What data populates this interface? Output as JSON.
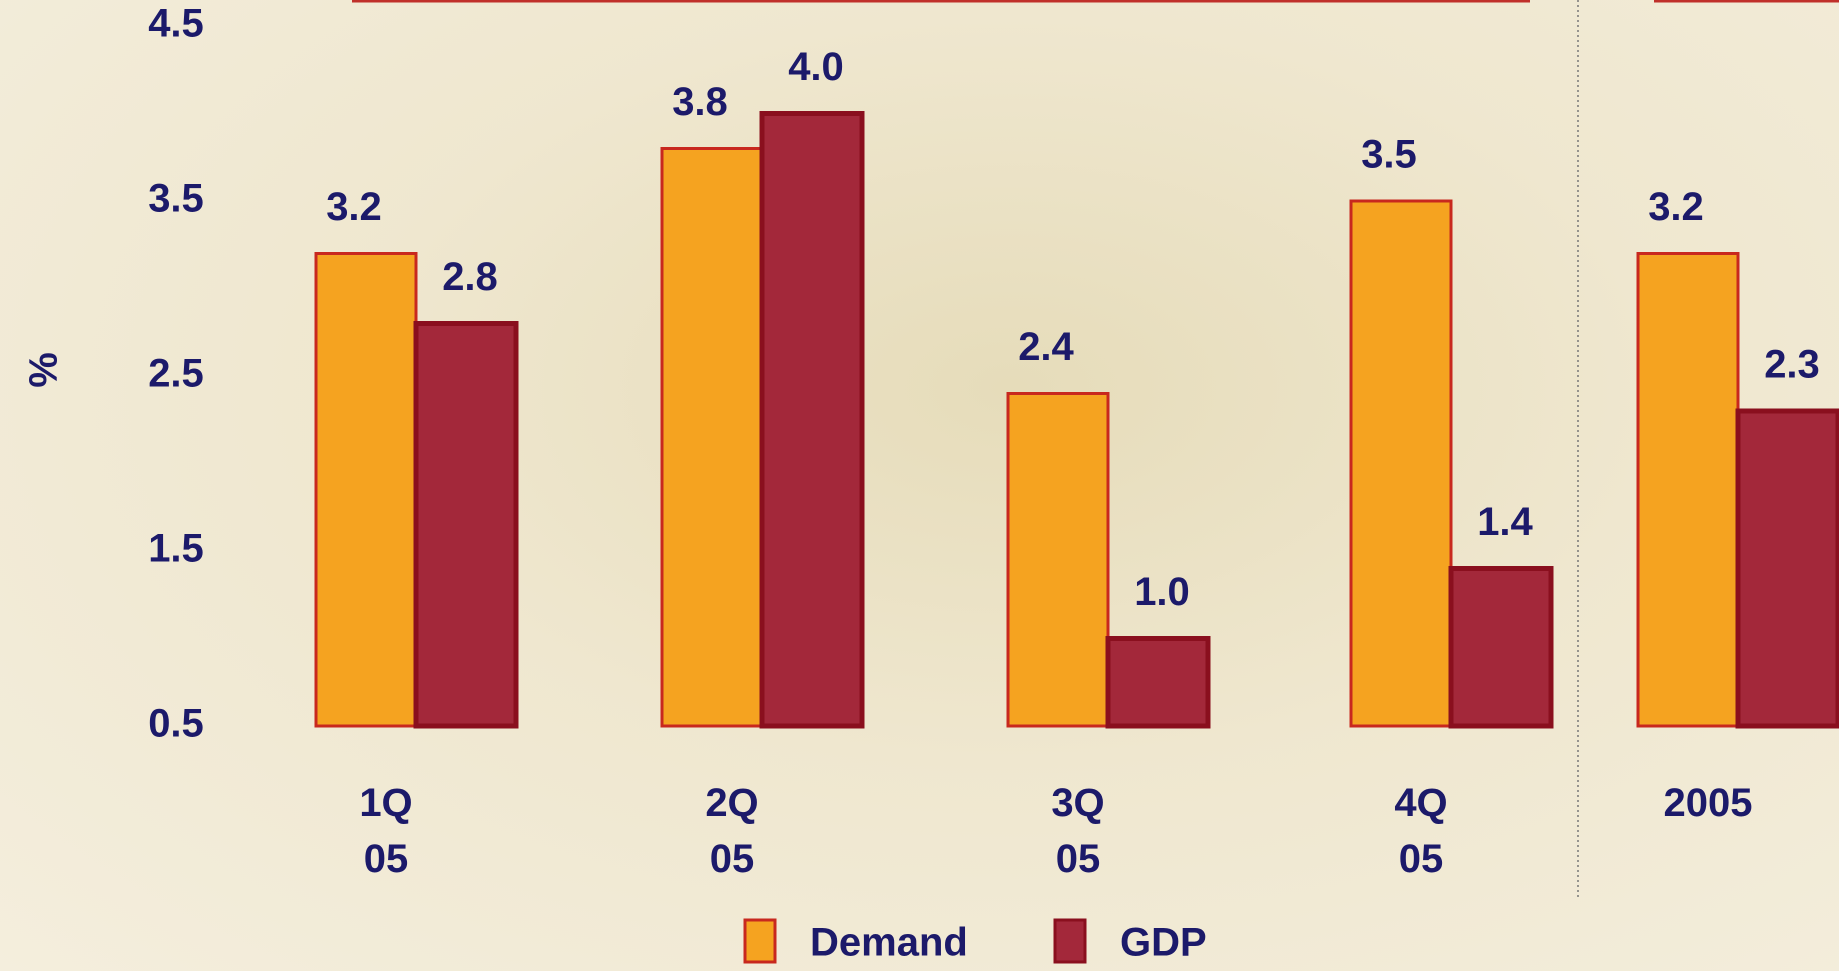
{
  "chart_data": {
    "type": "bar",
    "y_label": "%",
    "categories": [
      "1Q\n05",
      "2Q\n05",
      "3Q\n05",
      "4Q\n05",
      "2005"
    ],
    "series": [
      {
        "name": "Demand",
        "color": "#f5a320",
        "values": [
          3.2,
          3.8,
          2.4,
          3.5,
          3.2
        ],
        "value_labels": [
          "3.2",
          "3.8",
          "2.4",
          "3.5",
          "3.2"
        ]
      },
      {
        "name": "GDP",
        "color": "#a3283a",
        "values": [
          2.8,
          4.0,
          1.0,
          1.4,
          2.3
        ],
        "value_labels": [
          "2.8",
          "4.0",
          "1.0",
          "1.4",
          "2.3"
        ]
      }
    ],
    "ylim": [
      0.5,
      4.5
    ],
    "yticks": [
      0.5,
      1.5,
      2.5,
      3.5,
      4.5
    ]
  }
}
